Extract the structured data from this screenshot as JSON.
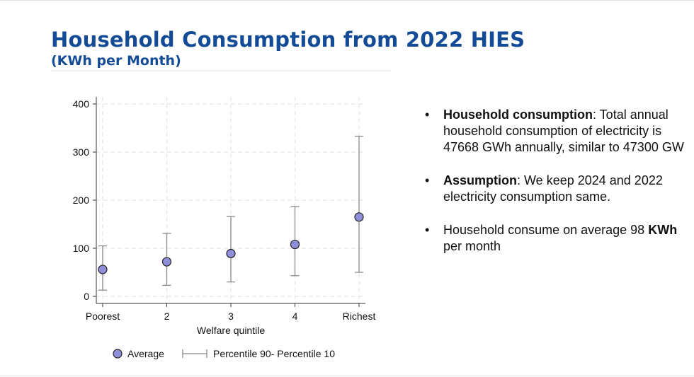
{
  "title": "Household Consumption from 2022 HIES",
  "subtitle": "(KWh per Month)",
  "bullets": [
    {
      "lead": "Household consumption",
      "text": ": Total annual household consumption of electricity is 47668 GWh annually, similar to 47300 GW"
    },
    {
      "lead": "Assumption",
      "text": ": We keep 2024 and 2022 electricity consumption same."
    },
    {
      "pre": "Household consume on average 98 ",
      "lead": "KWh",
      "text": " per month"
    }
  ],
  "bullet_glyph": "•",
  "chart_data": {
    "type": "scatter",
    "xlabel": "Welfare quintile",
    "ylabel": "",
    "categories": [
      "Poorest",
      "2",
      "3",
      "4",
      "Richest"
    ],
    "ylim": [
      0,
      400
    ],
    "yticks": [
      0,
      100,
      200,
      300,
      400
    ],
    "grid": true,
    "legend_position": "bottom",
    "series": [
      {
        "name": "Average",
        "marker": "circle",
        "color": "#8f8fd9",
        "values": [
          56,
          72,
          89,
          108,
          165
        ]
      },
      {
        "name": "Percentile 90- Percentile 10",
        "kind": "errorbar",
        "color": "#8a8a8a",
        "low": [
          13,
          23,
          30,
          43,
          50
        ],
        "high": [
          105,
          131,
          166,
          187,
          333
        ]
      }
    ]
  }
}
